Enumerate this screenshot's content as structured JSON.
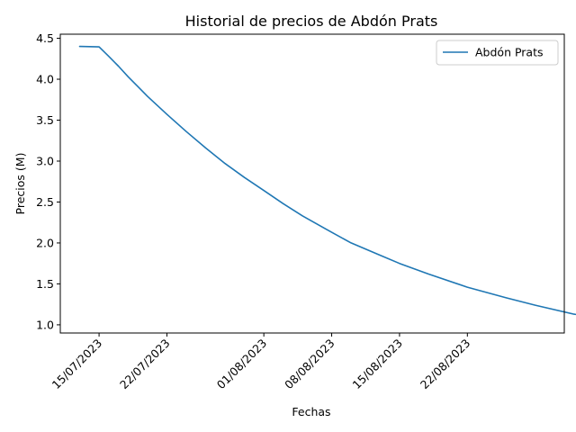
{
  "chart_data": {
    "type": "line",
    "title": "Historial de precios de Abdón Prats",
    "xlabel": "Fechas",
    "ylabel": "Precios (M)",
    "x_tick_labels": [
      "15/07/2023",
      "22/07/2023",
      "01/08/2023",
      "08/08/2023",
      "15/08/2023",
      "22/08/2023"
    ],
    "x_tick_dates": [
      "2023-07-15",
      "2023-07-22",
      "2023-08-01",
      "2023-08-08",
      "2023-08-15",
      "2023-08-22"
    ],
    "xlim": [
      "2023-07-11",
      "2023-09-01"
    ],
    "y_ticks": [
      "1.0",
      "1.5",
      "2.0",
      "2.5",
      "3.0",
      "3.5",
      "4.0",
      "4.5"
    ],
    "ylim": [
      0.9,
      4.55
    ],
    "legend": {
      "placement": "top-right"
    },
    "grid": false,
    "series": [
      {
        "name": "Abdón Prats",
        "color": "#1f77b4",
        "points": [
          {
            "x": "2023-07-13",
            "y": 4.4
          },
          {
            "x": "2023-07-15",
            "y": 4.395
          },
          {
            "x": "2023-07-16",
            "y": 4.28
          },
          {
            "x": "2023-07-17",
            "y": 4.16
          },
          {
            "x": "2023-07-18",
            "y": 4.03
          },
          {
            "x": "2023-07-19",
            "y": 3.91
          },
          {
            "x": "2023-07-20",
            "y": 3.79
          },
          {
            "x": "2023-07-21",
            "y": 3.68
          },
          {
            "x": "2023-07-22",
            "y": 3.57
          },
          {
            "x": "2023-07-24",
            "y": 3.36
          },
          {
            "x": "2023-07-26",
            "y": 3.16
          },
          {
            "x": "2023-07-28",
            "y": 2.97
          },
          {
            "x": "2023-07-30",
            "y": 2.8
          },
          {
            "x": "2023-08-01",
            "y": 2.64
          },
          {
            "x": "2023-08-03",
            "y": 2.48
          },
          {
            "x": "2023-08-05",
            "y": 2.33
          },
          {
            "x": "2023-08-08",
            "y": 2.13
          },
          {
            "x": "2023-08-10",
            "y": 2.0
          },
          {
            "x": "2023-08-13",
            "y": 1.85
          },
          {
            "x": "2023-08-15",
            "y": 1.75
          },
          {
            "x": "2023-08-18",
            "y": 1.62
          },
          {
            "x": "2023-08-22",
            "y": 1.46
          },
          {
            "x": "2023-08-26",
            "y": 1.33
          },
          {
            "x": "2023-08-29",
            "y": 1.24
          },
          {
            "x": "2023-09-02",
            "y": 1.13
          },
          {
            "x": "2023-09-06",
            "y": 1.07
          }
        ]
      }
    ]
  }
}
